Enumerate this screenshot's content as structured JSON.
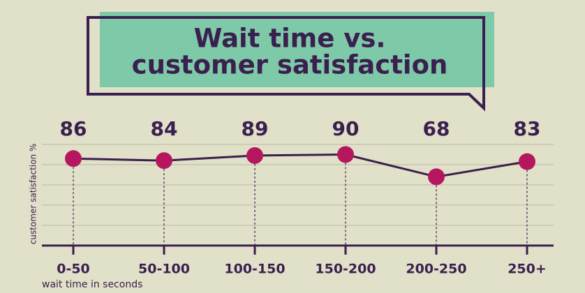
{
  "chart_data": {
    "type": "line",
    "title_lines": [
      "Wait time vs.",
      "customer satisfaction"
    ],
    "xlabel": "wait time in seconds",
    "ylabel": "customer satisfaction %",
    "categories": [
      "0-50",
      "50-100",
      "100-150",
      "150-200",
      "200-250",
      "250+"
    ],
    "values": [
      86,
      84,
      89,
      90,
      68,
      83
    ],
    "color": "#3b1f4e",
    "marker_color": "#b5175f",
    "ylim": [
      0,
      100
    ],
    "yticks": [
      0,
      20,
      40,
      60,
      80,
      100
    ],
    "grid": true
  }
}
